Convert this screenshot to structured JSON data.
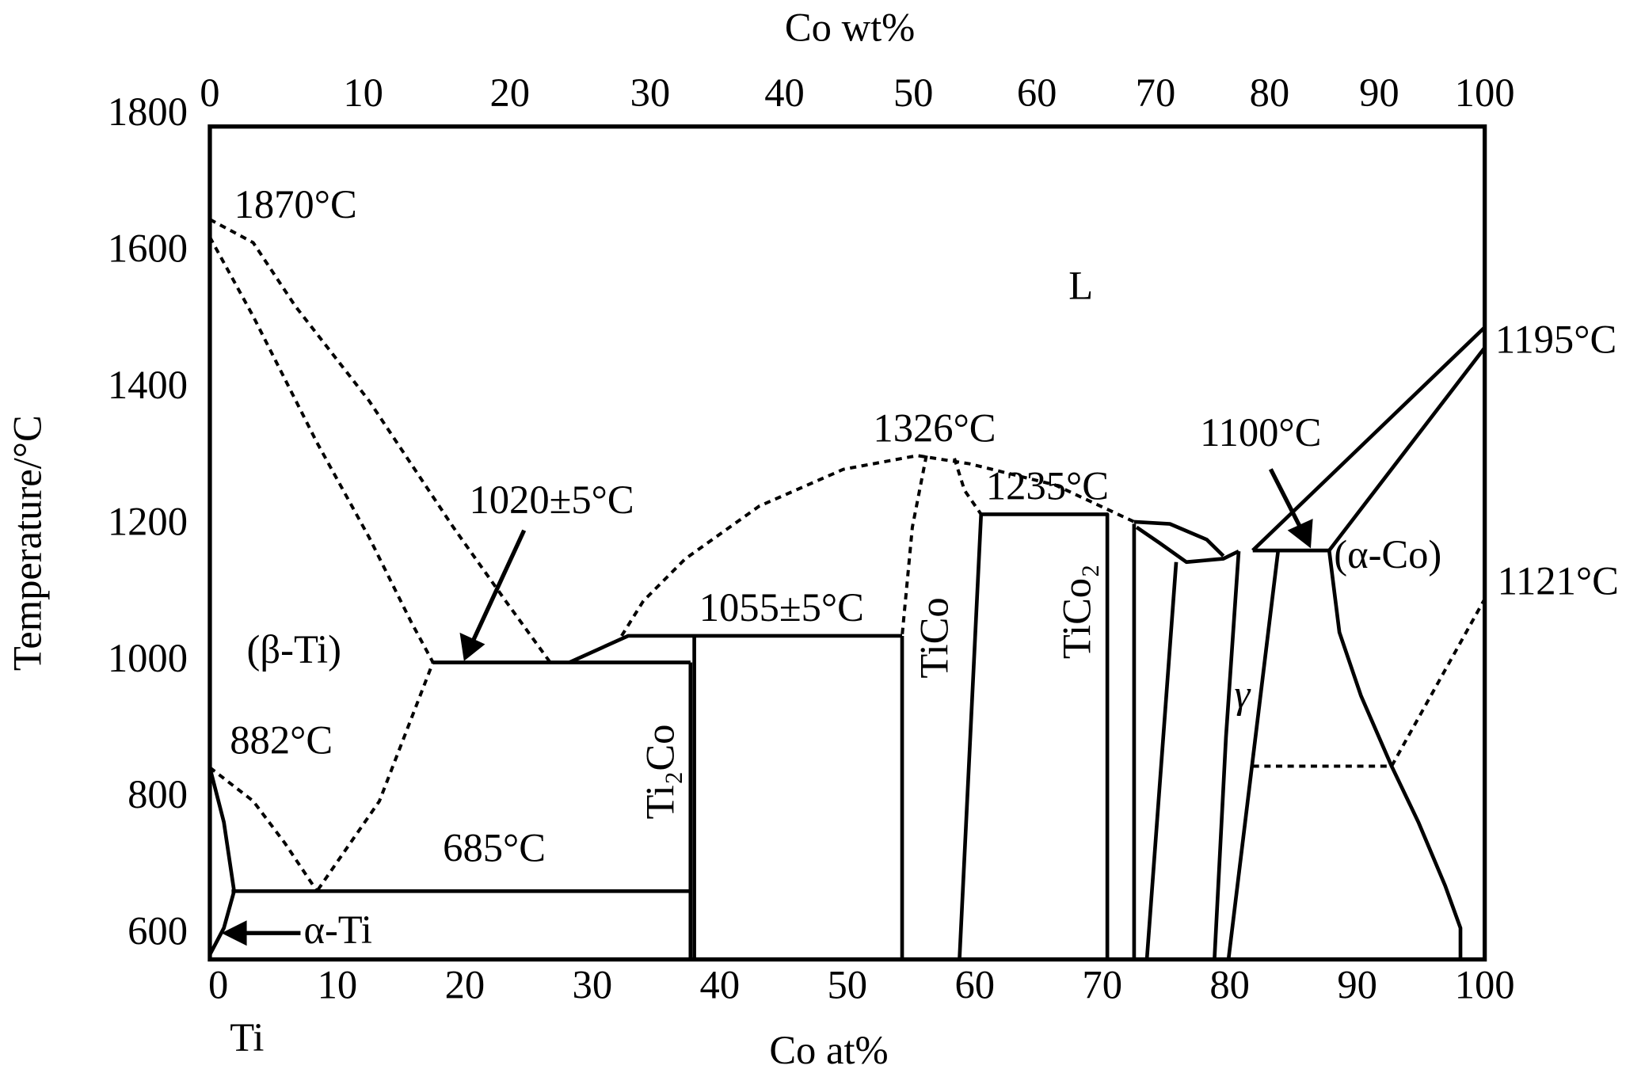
{
  "chart_data": {
    "type": "phase-diagram",
    "xlabel": "Co at%",
    "x2label": "Co wt%",
    "ylabel": "Temperature/°C",
    "xlim": [
      0,
      100
    ],
    "xticks": [
      0,
      10,
      20,
      30,
      40,
      50,
      60,
      70,
      80,
      90,
      100
    ],
    "x2ticks": [
      0,
      10,
      20,
      30,
      40,
      50,
      60,
      70,
      80,
      90,
      100
    ],
    "ylim": [
      580,
      1800
    ],
    "yticks": [
      600,
      800,
      1000,
      1200,
      1400,
      1600,
      1800
    ],
    "color": "#000000",
    "annotations": [
      "1870°C",
      "L",
      "1195°C",
      "1326°C",
      "1100°C",
      "1020±5°C",
      "1235°C",
      "1055±5°C",
      "(α-Co)",
      "1121°C",
      "TiCo",
      "TiCo₂",
      "(β-Ti)",
      "γ",
      "882°C",
      "Ti₂Co",
      "685°C",
      "α-Ti",
      "Ti"
    ],
    "series": [
      {
        "style": "dashed",
        "x": [
          0,
          3.4,
          6.7,
          12.5,
          19.1,
          23.2,
          26.7
        ],
        "y": [
          1664,
          1630,
          1537,
          1398,
          1213,
          1105,
          1015
        ]
      },
      {
        "style": "dashed",
        "x": [
          0,
          3.4,
          8.4,
          12.5,
          15.8,
          17.5,
          13.3,
          8.4
        ],
        "y": [
          1638,
          1522,
          1337,
          1198,
          1074,
          1015,
          812,
          680
        ]
      },
      {
        "style": "dashed",
        "x": [
          0,
          3.4,
          5.9,
          8.4
        ],
        "y": [
          861,
          812,
          750,
          680
        ]
      },
      {
        "style": "dashed",
        "x": [
          32.3,
          34.0,
          37.3,
          43.1,
          49.7,
          55.5,
          59.6,
          66.3,
          72.5
        ],
        "y": [
          1054,
          1105,
          1167,
          1244,
          1298,
          1318,
          1306,
          1275,
          1221
        ]
      },
      {
        "style": "dashed",
        "x": [
          56.2,
          55.1,
          54.3
        ],
        "y": [
          1318,
          1213,
          1054
        ]
      },
      {
        "style": "dashed",
        "x": [
          58.4,
          59.2,
          60.5
        ],
        "y": [
          1314,
          1267,
          1232
        ]
      },
      {
        "style": "dashed",
        "x": [
          81.8,
          92.7,
          100
        ],
        "y": [
          863,
          863,
          1108
        ]
      },
      {
        "style": "solid",
        "x": [
          17.5,
          37.7
        ],
        "y": [
          1015,
          1015
        ]
      },
      {
        "style": "solid",
        "x": [
          28.2,
          32.8,
          54.3
        ],
        "y": [
          1015,
          1054,
          1054
        ]
      },
      {
        "style": "solid",
        "x": [
          37.7,
          37.7
        ],
        "y": [
          1015,
          580
        ]
      },
      {
        "style": "solid",
        "x": [
          38.0,
          38.0
        ],
        "y": [
          1054,
          580
        ]
      },
      {
        "style": "solid",
        "x": [
          54.3,
          54.3
        ],
        "y": [
          1054,
          580
        ]
      },
      {
        "style": "solid",
        "x": [
          1.7,
          37.7
        ],
        "y": [
          680,
          680
        ]
      },
      {
        "style": "solid",
        "x": [
          0,
          1.1,
          1.9,
          1.1,
          0
        ],
        "y": [
          861,
          781,
          680,
          626,
          587
        ]
      },
      {
        "style": "solid",
        "x": [
          58.8,
          60.5,
          70.4,
          70.4
        ],
        "y": [
          580,
          1232,
          1232,
          580
        ]
      },
      {
        "style": "solid",
        "x": [
          72.5,
          72.5
        ],
        "y": [
          1218,
          580
        ]
      },
      {
        "style": "solid",
        "x": [
          72.5,
          75.3,
          78.2,
          79.5
        ],
        "y": [
          1221,
          1218,
          1195,
          1171
        ]
      },
      {
        "style": "solid",
        "x": [
          72.7,
          74.5,
          76.6,
          79.5,
          80.7
        ],
        "y": [
          1213,
          1190,
          1162,
          1167,
          1178
        ]
      },
      {
        "style": "solid",
        "x": [
          75.8,
          73.5
        ],
        "y": [
          1162,
          580
        ]
      },
      {
        "style": "solid",
        "x": [
          80.7,
          79.7,
          78.8
        ],
        "y": [
          1178,
          905,
          580
        ]
      },
      {
        "style": "solid",
        "x": [
          83.8,
          79.9
        ],
        "y": [
          1179,
          580
        ]
      },
      {
        "style": "solid",
        "x": [
          81.8,
          87.8
        ],
        "y": [
          1179,
          1179
        ]
      },
      {
        "style": "solid",
        "x": [
          81.8,
          100
        ],
        "y": [
          1179,
          1506
        ]
      },
      {
        "style": "solid",
        "x": [
          87.8,
          100
        ],
        "y": [
          1179,
          1476
        ]
      },
      {
        "style": "solid",
        "x": [
          87.8,
          88.6,
          90.3,
          92.7,
          94.8,
          96.9,
          98.1,
          98.1
        ],
        "y": [
          1179,
          1059,
          966,
          863,
          781,
          688,
          626,
          580
        ]
      }
    ]
  }
}
